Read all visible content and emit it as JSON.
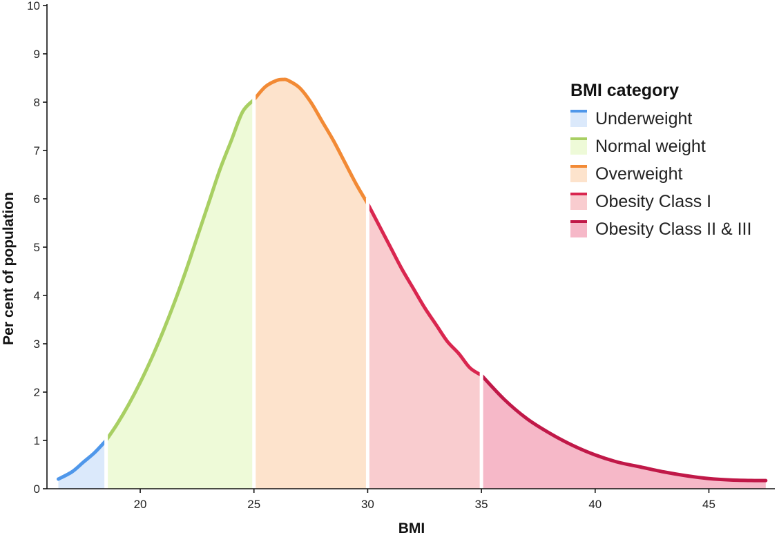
{
  "chart_data": {
    "type": "area",
    "title": "",
    "xlabel": "BMI",
    "ylabel": "Per cent of population",
    "xlim": [
      15.9,
      47.9
    ],
    "ylim": [
      0,
      10
    ],
    "xticks": [
      20,
      25,
      30,
      35,
      40,
      45
    ],
    "yticks": [
      0,
      1,
      2,
      3,
      4,
      5,
      6,
      7,
      8,
      9,
      10
    ],
    "grid": false,
    "legend": {
      "title": "BMI category",
      "position": "top-right"
    },
    "curve": {
      "x": [
        16.4,
        17.0,
        17.5,
        18.0,
        18.5,
        19.0,
        19.5,
        20.0,
        20.5,
        21.0,
        21.5,
        22.0,
        22.5,
        23.0,
        23.5,
        24.0,
        24.5,
        25.0,
        25.5,
        26.0,
        26.3,
        26.5,
        27.0,
        27.5,
        28.0,
        28.5,
        29.0,
        29.5,
        30.0,
        30.5,
        31.0,
        31.5,
        32.0,
        32.5,
        33.0,
        33.5,
        34.0,
        34.5,
        35.0,
        36.0,
        37.0,
        38.0,
        39.0,
        40.0,
        41.0,
        42.0,
        43.0,
        44.0,
        45.0,
        46.0,
        47.0,
        47.5
      ],
      "y": [
        0.2,
        0.35,
        0.55,
        0.75,
        1.0,
        1.35,
        1.75,
        2.2,
        2.7,
        3.25,
        3.85,
        4.5,
        5.2,
        5.9,
        6.6,
        7.2,
        7.8,
        8.05,
        8.32,
        8.45,
        8.47,
        8.45,
        8.3,
        8.0,
        7.6,
        7.2,
        6.75,
        6.3,
        5.9,
        5.45,
        5.0,
        4.55,
        4.15,
        3.75,
        3.4,
        3.05,
        2.8,
        2.5,
        2.35,
        1.85,
        1.45,
        1.15,
        0.9,
        0.7,
        0.55,
        0.45,
        0.35,
        0.27,
        0.21,
        0.18,
        0.17,
        0.17
      ]
    },
    "series": [
      {
        "name": "Underweight",
        "range": [
          16.4,
          18.5
        ],
        "line_color": "#4f97ea",
        "fill_color": "#dbe9fb"
      },
      {
        "name": "Normal weight",
        "range": [
          18.5,
          25.0
        ],
        "line_color": "#a8cf63",
        "fill_color": "#eefad8"
      },
      {
        "name": "Overweight",
        "range": [
          25.0,
          30.0
        ],
        "line_color": "#f28a35",
        "fill_color": "#fde3cc"
      },
      {
        "name": "Obesity Class I",
        "range": [
          30.0,
          35.0
        ],
        "line_color": "#d9264f",
        "fill_color": "#f9cccf"
      },
      {
        "name": "Obesity Class II & III",
        "range": [
          35.0,
          47.5
        ],
        "line_color": "#c01848",
        "fill_color": "#f6b8c8"
      }
    ]
  }
}
